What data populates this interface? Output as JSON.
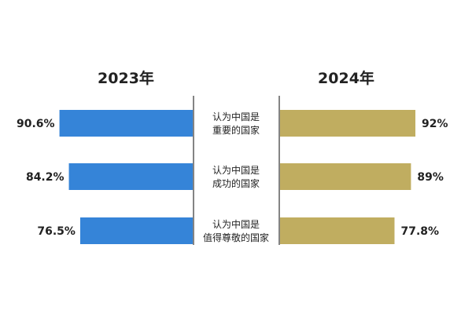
{
  "chart_data": {
    "type": "bar",
    "orientation": "horizontal-butterfly",
    "categories": [
      [
        "认为中国是",
        "重要的国家"
      ],
      [
        "认为中国是",
        "成功的国家"
      ],
      [
        "认为中国是",
        "值得尊敬的国家"
      ]
    ],
    "series": [
      {
        "name": "2023年",
        "values": [
          90.6,
          84.2,
          76.5
        ],
        "labels": [
          "90.6%",
          "84.2%",
          "76.5%"
        ],
        "color": "#3584d8",
        "side": "left"
      },
      {
        "name": "2024年",
        "values": [
          92,
          89,
          77.8
        ],
        "labels": [
          "92%",
          "89%",
          "77.8%"
        ],
        "color": "#c0ad60",
        "side": "right"
      }
    ],
    "value_unit": "%",
    "grid": false,
    "legend": "none",
    "divider_color": "#333333",
    "text_color": "#222222"
  }
}
